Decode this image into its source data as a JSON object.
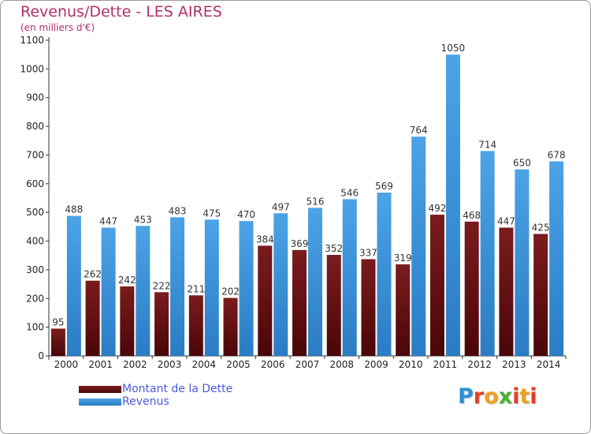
{
  "header": {
    "title": "Revenus/Dette - LES AIRES",
    "unit_label": "(en milliers d'€)"
  },
  "logo": {
    "text": "Proxiti",
    "letter_colors": [
      "#2a8fd8",
      "#e0402a",
      "#f0a020",
      "#4ab030",
      "#e0402a",
      "#f0a020",
      "#e0402a"
    ]
  },
  "colors": {
    "debt": "#7a1c1e",
    "revenue": "#4ca3e6",
    "debt_gradient_dark": "#4a0608",
    "revenue_gradient_dark": "#2a7cc4",
    "axis": "#333333",
    "grid": "#cccccc"
  },
  "chart_data": {
    "type": "bar",
    "title": "Revenus/Dette - LES AIRES",
    "ylabel": "(en milliers d'€)",
    "xlabel": "",
    "categories": [
      "2000",
      "2001",
      "2002",
      "2003",
      "2004",
      "2005",
      "2006",
      "2007",
      "2008",
      "2009",
      "2010",
      "2011",
      "2012",
      "2013",
      "2014"
    ],
    "ylim": [
      0,
      1100
    ],
    "yticks": [
      0,
      100,
      200,
      300,
      400,
      500,
      600,
      700,
      800,
      900,
      1000,
      1100
    ],
    "grid": false,
    "legend_position": "bottom-left",
    "series": [
      {
        "name": "Montant de la Dette",
        "values": [
          95,
          262,
          242,
          222,
          211,
          202,
          384,
          369,
          352,
          337,
          319,
          492,
          468,
          447,
          425
        ]
      },
      {
        "name": "Revenus",
        "values": [
          488,
          447,
          453,
          483,
          475,
          470,
          497,
          516,
          546,
          569,
          764,
          1050,
          714,
          650,
          678
        ]
      }
    ]
  }
}
